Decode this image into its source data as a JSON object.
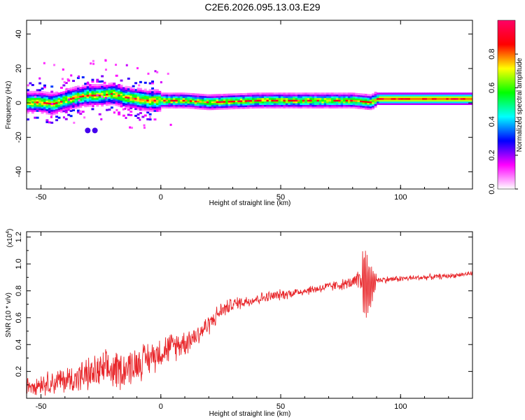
{
  "title": "C2E6.2026.095.13.03.E29",
  "chart_data": [
    {
      "type": "heatmap",
      "xlabel": "Height of straight line (km)",
      "ylabel": "Frequency (Hz)",
      "xlim": [
        -56,
        130
      ],
      "ylim": [
        -50,
        48
      ],
      "xticks": [
        -50,
        0,
        50,
        100
      ],
      "yticks": [
        -40,
        -20,
        0,
        20,
        40
      ],
      "colorbar": {
        "label": "Normalized spectral amplitude",
        "range": [
          0,
          1
        ],
        "ticks": [
          "0.0",
          "0.2",
          "0.4",
          "0.6",
          "0.8"
        ],
        "colors": [
          "#ffffff",
          "#ff00ff",
          "#0000ff",
          "#00ffff",
          "#00ff00",
          "#ffff00",
          "#ff0000",
          "#ff0066"
        ]
      },
      "ridge": {
        "x": [
          -55,
          -50,
          -45,
          -40,
          -35,
          -30,
          -25,
          -20,
          -15,
          -10,
          -5,
          0,
          10,
          20,
          40,
          60,
          80,
          88,
          90,
          100,
          130
        ],
        "freq": [
          0,
          0,
          -1,
          1,
          3,
          4,
          4,
          5,
          3,
          2,
          1,
          1,
          1,
          0,
          1,
          1,
          1,
          0,
          2,
          2,
          2
        ]
      },
      "blob": {
        "x": -29,
        "freq": -16
      }
    },
    {
      "type": "line",
      "xlabel": "Height of straight line (km)",
      "ylabel": "SNR (10 * v/v)",
      "scale_note": "(x10",
      "scale_exp": "4",
      "xlim": [
        -56,
        130
      ],
      "ylim": [
        0.0,
        1.24
      ],
      "xticks": [
        -50,
        0,
        50,
        100
      ],
      "yticks": [
        "0.2",
        "0.4",
        "0.6",
        "0.8",
        "1.0",
        "1.2"
      ],
      "color": "#e8262a",
      "trend_x": [
        -56,
        -45,
        -35,
        -25,
        -15,
        -5,
        0,
        10,
        15,
        20,
        25,
        30,
        40,
        50,
        60,
        70,
        80,
        85,
        87,
        88,
        89,
        90,
        100,
        110,
        120,
        130
      ],
      "trend_y": [
        0.1,
        0.12,
        0.15,
        0.2,
        0.22,
        0.3,
        0.35,
        0.42,
        0.47,
        0.55,
        0.65,
        0.7,
        0.74,
        0.77,
        0.8,
        0.83,
        0.86,
        0.86,
        0.82,
        0.84,
        0.86,
        0.88,
        0.89,
        0.9,
        0.91,
        0.93
      ],
      "noise_x": [
        -56,
        -20,
        10,
        30,
        60,
        80,
        85,
        90,
        130
      ],
      "noise_amp": [
        0.08,
        0.18,
        0.12,
        0.06,
        0.04,
        0.05,
        0.2,
        0.03,
        0.02
      ]
    }
  ]
}
